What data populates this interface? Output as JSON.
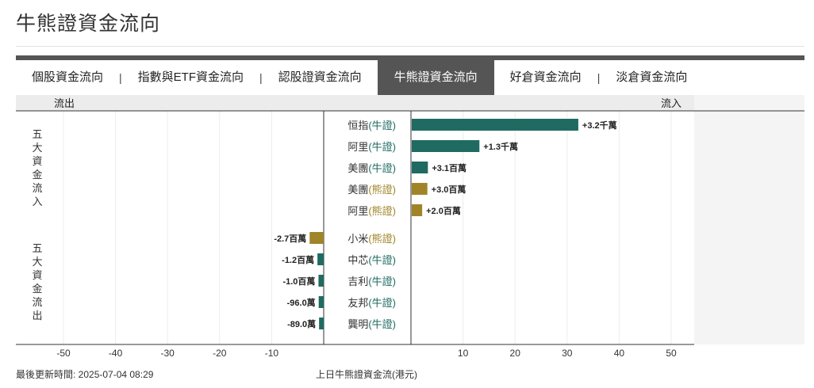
{
  "page": {
    "title": "牛熊證資金流向"
  },
  "tabs": [
    {
      "label": "個股資金流向",
      "active": false
    },
    {
      "label": "指數與ETF資金流向",
      "active": false
    },
    {
      "label": "認股證資金流向",
      "active": false
    },
    {
      "label": "牛熊證資金流向",
      "active": true
    },
    {
      "label": "好倉資金流向",
      "active": false
    },
    {
      "label": "淡倉資金流向",
      "active": false
    }
  ],
  "tab_separator": "|",
  "colors": {
    "bull": "#1f6b62",
    "bear": "#a08428",
    "tab_bar": "#555555",
    "header_band": "#ececec"
  },
  "chart_data": {
    "type": "bar",
    "header": {
      "outflow_label": "流出",
      "inflow_label": "流入"
    },
    "group_labels": {
      "inflow": "五大資金流入",
      "outflow": "五大資金流出"
    },
    "xlim": [
      -55,
      55
    ],
    "ticks": [
      -50,
      -40,
      -30,
      -20,
      -10,
      10,
      20,
      30,
      40,
      50
    ],
    "unit": "百萬港元",
    "inflow": [
      {
        "name": "恒指",
        "type": "牛證",
        "value": 3200,
        "label": "+3.2千萬"
      },
      {
        "name": "阿里",
        "type": "牛證",
        "value": 1300,
        "label": "+1.3千萬"
      },
      {
        "name": "美團",
        "type": "牛證",
        "value": 310,
        "label": "+3.1百萬"
      },
      {
        "name": "美團",
        "type": "熊證",
        "value": 300,
        "label": "+3.0百萬"
      },
      {
        "name": "阿里",
        "type": "熊證",
        "value": 200,
        "label": "+2.0百萬"
      }
    ],
    "outflow": [
      {
        "name": "小米",
        "type": "熊證",
        "value": -270,
        "label": "-2.7百萬"
      },
      {
        "name": "中芯",
        "type": "牛證",
        "value": -120,
        "label": "-1.2百萬"
      },
      {
        "name": "吉利",
        "type": "牛證",
        "value": -100,
        "label": "-1.0百萬"
      },
      {
        "name": "友邦",
        "type": "牛證",
        "value": -96,
        "label": "-96.0萬"
      },
      {
        "name": "龔明",
        "type": "牛證",
        "value": -89,
        "label": "-89.0萬"
      }
    ]
  },
  "footer": {
    "updated": "最後更新時間: 2025-07-04 08:29",
    "caption": "上日牛熊證資金流(港元)"
  }
}
